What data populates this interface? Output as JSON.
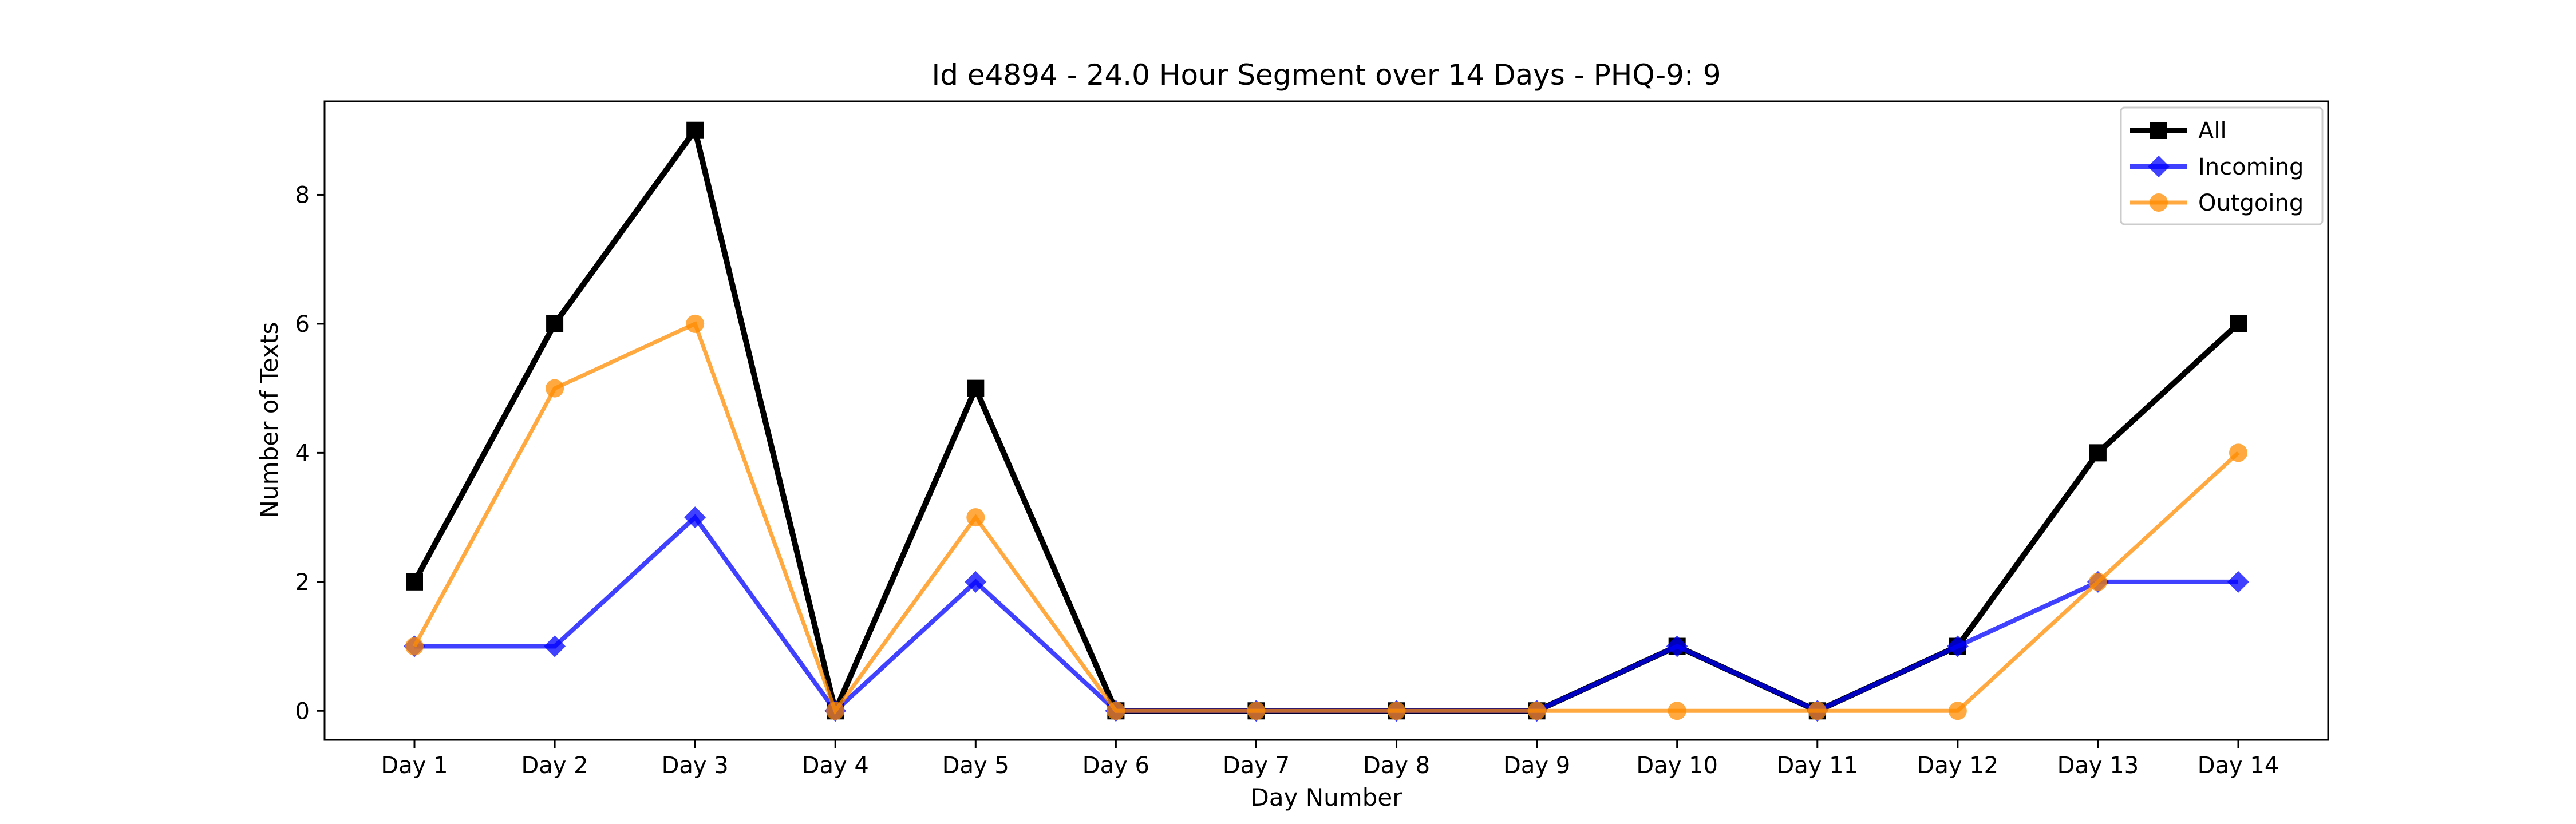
{
  "chart_data": {
    "type": "line",
    "title": "Id e4894 - 24.0 Hour Segment over 14 Days - PHQ-9: 9",
    "xlabel": "Day Number",
    "ylabel": "Number of Texts",
    "categories": [
      "Day 1",
      "Day 2",
      "Day 3",
      "Day 4",
      "Day 5",
      "Day 6",
      "Day 7",
      "Day 8",
      "Day 9",
      "Day 10",
      "Day 11",
      "Day 12",
      "Day 13",
      "Day 14"
    ],
    "ylim": [
      -0.45,
      9.45
    ],
    "yticks": [
      0,
      2,
      4,
      6,
      8
    ],
    "grid": false,
    "legend_position": "top-right",
    "series": [
      {
        "name": "All",
        "color": "#000000",
        "marker": "square",
        "values": [
          2,
          6,
          9,
          0,
          5,
          0,
          0,
          0,
          0,
          1,
          0,
          1,
          4,
          6
        ]
      },
      {
        "name": "Incoming",
        "color": "#0000ff",
        "marker": "diamond",
        "values": [
          1,
          1,
          3,
          0,
          2,
          0,
          0,
          0,
          0,
          1,
          0,
          1,
          2,
          2
        ]
      },
      {
        "name": "Outgoing",
        "color": "#ff8c00",
        "marker": "circle",
        "values": [
          1,
          5,
          6,
          0,
          3,
          0,
          0,
          0,
          0,
          0,
          0,
          0,
          2,
          4
        ]
      }
    ]
  }
}
